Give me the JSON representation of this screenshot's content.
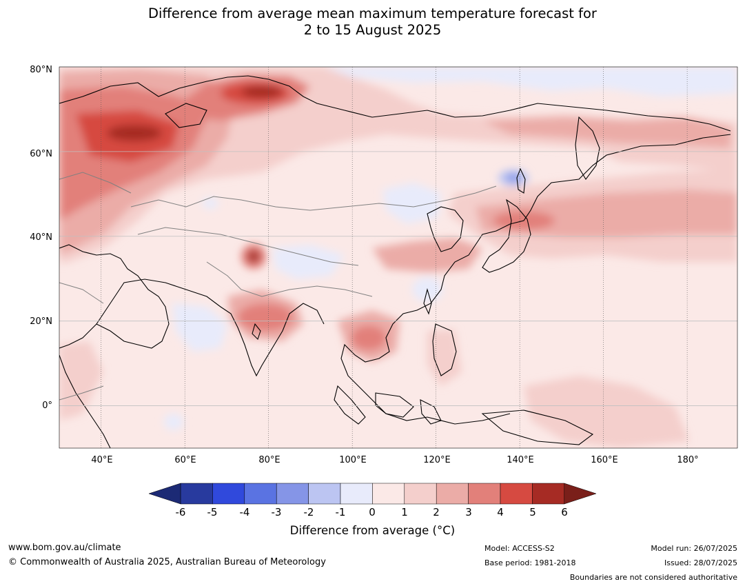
{
  "title": {
    "line1": "Difference from average mean maximum temperature forecast for",
    "line2": "2 to 15 August 2025"
  },
  "map": {
    "lat_labels": [
      "80°N",
      "60°N",
      "40°N",
      "20°N",
      "0°"
    ],
    "lon_labels": [
      "40°E",
      "60°E",
      "80°E",
      "100°E",
      "120°E",
      "140°E",
      "160°E",
      "180°"
    ],
    "lat_range": [
      -10,
      80
    ],
    "lon_range": [
      30,
      192
    ]
  },
  "colorbar": {
    "ticks": [
      "-6",
      "-5",
      "-4",
      "-3",
      "-2",
      "-1",
      "0",
      "1",
      "2",
      "3",
      "4",
      "5",
      "6"
    ],
    "colors": [
      "#283a9e",
      "#3049dc",
      "#5a73e2",
      "#8595e7",
      "#bcc5f2",
      "#e8ebfb",
      "#fbe9e7",
      "#f4cfcc",
      "#ebaca7",
      "#e2807a",
      "#d64a41",
      "#a62b24"
    ],
    "under_color": "#1c2a75",
    "over_color": "#7a1f1a",
    "label": "Difference from average (°C)"
  },
  "footer": {
    "website": "www.bom.gov.au/climate",
    "copyright": "© Commonwealth of Australia 2025, Australian Bureau of Meteorology",
    "model": "Model: ACCESS-S2",
    "base_period": "Base period: 1981-2018",
    "model_run": "Model run: 26/07/2025",
    "issued": "Issued: 28/07/2025",
    "disclaimer": "Boundaries are not considered authoritative"
  }
}
